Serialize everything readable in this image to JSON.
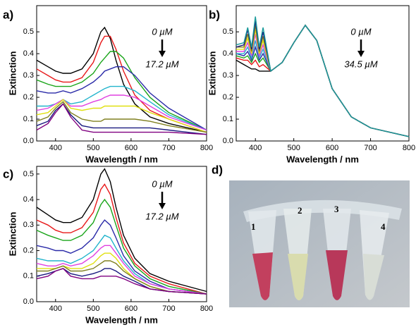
{
  "chart_data": [
    {
      "type": "line",
      "panel_label": "a)",
      "xlabel": "Wavelength / nm",
      "ylabel": "Extinction",
      "annotations": [
        "0 µM",
        "17.2 µM"
      ],
      "xlim": [
        350,
        800
      ],
      "xticks": [
        400,
        500,
        600,
        700,
        800
      ],
      "ylim": [
        0,
        0.62
      ],
      "yticks": [
        {
          "value": 0,
          "label": "0.0"
        },
        0.1,
        0.2,
        0.3,
        0.4,
        0.5
      ],
      "x": [
        350,
        380,
        400,
        420,
        440,
        470,
        500,
        520,
        530,
        545,
        560,
        580,
        610,
        650,
        700,
        800
      ],
      "series": [
        {
          "color": "#000000",
          "values": [
            0.37,
            0.34,
            0.32,
            0.31,
            0.31,
            0.33,
            0.4,
            0.5,
            0.52,
            0.47,
            0.37,
            0.26,
            0.17,
            0.11,
            0.08,
            0.04
          ]
        },
        {
          "color": "#e8191a",
          "values": [
            0.33,
            0.3,
            0.28,
            0.27,
            0.27,
            0.29,
            0.36,
            0.45,
            0.48,
            0.48,
            0.42,
            0.32,
            0.21,
            0.14,
            0.1,
            0.04
          ]
        },
        {
          "color": "#1aa51a",
          "values": [
            0.28,
            0.26,
            0.25,
            0.25,
            0.25,
            0.27,
            0.31,
            0.36,
            0.38,
            0.41,
            0.41,
            0.38,
            0.29,
            0.2,
            0.13,
            0.05
          ]
        },
        {
          "color": "#2a2aa8",
          "values": [
            0.23,
            0.22,
            0.22,
            0.23,
            0.22,
            0.24,
            0.27,
            0.3,
            0.32,
            0.33,
            0.34,
            0.34,
            0.3,
            0.22,
            0.15,
            0.05
          ]
        },
        {
          "color": "#22b4cc",
          "values": [
            0.16,
            0.16,
            0.17,
            0.19,
            0.17,
            0.18,
            0.21,
            0.23,
            0.24,
            0.25,
            0.25,
            0.25,
            0.23,
            0.18,
            0.12,
            0.05
          ]
        },
        {
          "color": "#e040e0",
          "values": [
            0.14,
            0.15,
            0.17,
            0.19,
            0.16,
            0.16,
            0.18,
            0.19,
            0.2,
            0.21,
            0.21,
            0.21,
            0.2,
            0.16,
            0.11,
            0.05
          ]
        },
        {
          "color": "#e0e010",
          "values": [
            0.12,
            0.13,
            0.16,
            0.19,
            0.15,
            0.14,
            0.15,
            0.15,
            0.16,
            0.16,
            0.16,
            0.16,
            0.16,
            0.13,
            0.1,
            0.04
          ]
        },
        {
          "color": "#808020",
          "values": [
            0.09,
            0.11,
            0.15,
            0.18,
            0.13,
            0.1,
            0.09,
            0.09,
            0.1,
            0.1,
            0.1,
            0.1,
            0.1,
            0.09,
            0.07,
            0.04
          ]
        },
        {
          "color": "#1a1a80",
          "values": [
            0.07,
            0.09,
            0.14,
            0.17,
            0.12,
            0.07,
            0.06,
            0.06,
            0.06,
            0.06,
            0.06,
            0.06,
            0.06,
            0.06,
            0.05,
            0.03
          ]
        },
        {
          "color": "#800080",
          "values": [
            0.05,
            0.08,
            0.13,
            0.17,
            0.11,
            0.05,
            0.04,
            0.04,
            0.04,
            0.04,
            0.04,
            0.04,
            0.04,
            0.04,
            0.04,
            0.03
          ]
        }
      ]
    },
    {
      "type": "line",
      "panel_label": "b)",
      "xlabel": "Wavelength / nm",
      "ylabel": "Extinction",
      "annotations": [
        "0 µM",
        "34.5 µM"
      ],
      "xlim": [
        350,
        800
      ],
      "xticks": [
        400,
        500,
        600,
        700,
        800
      ],
      "ylim": [
        0,
        0.62
      ],
      "yticks": [
        {
          "value": 0,
          "label": "0.0"
        },
        0.1,
        0.2,
        0.3,
        0.4,
        0.5
      ],
      "x": [
        350,
        370,
        380,
        390,
        400,
        410,
        420,
        440,
        470,
        500,
        530,
        560,
        600,
        650,
        700,
        800
      ],
      "series": [
        {
          "color": "#000000",
          "values": [
            0.37,
            0.35,
            0.34,
            0.33,
            0.33,
            0.32,
            0.32,
            0.32,
            0.36,
            0.45,
            0.53,
            0.46,
            0.24,
            0.11,
            0.06,
            0.02
          ]
        },
        {
          "color": "#e8191a",
          "values": [
            0.38,
            0.37,
            0.37,
            0.35,
            0.37,
            0.34,
            0.35,
            0.32,
            0.36,
            0.45,
            0.53,
            0.46,
            0.24,
            0.11,
            0.06,
            0.02
          ]
        },
        {
          "color": "#1aa51a",
          "values": [
            0.39,
            0.38,
            0.39,
            0.36,
            0.4,
            0.36,
            0.38,
            0.32,
            0.36,
            0.45,
            0.53,
            0.46,
            0.24,
            0.11,
            0.06,
            0.02
          ]
        },
        {
          "color": "#2a2aa8",
          "values": [
            0.4,
            0.39,
            0.41,
            0.37,
            0.43,
            0.37,
            0.4,
            0.32,
            0.36,
            0.45,
            0.53,
            0.46,
            0.24,
            0.11,
            0.06,
            0.02
          ]
        },
        {
          "color": "#22b4cc",
          "values": [
            0.4,
            0.4,
            0.43,
            0.38,
            0.46,
            0.38,
            0.42,
            0.32,
            0.36,
            0.45,
            0.53,
            0.46,
            0.24,
            0.11,
            0.06,
            0.02
          ]
        },
        {
          "color": "#e040e0",
          "values": [
            0.41,
            0.41,
            0.45,
            0.39,
            0.49,
            0.39,
            0.44,
            0.32,
            0.36,
            0.45,
            0.53,
            0.46,
            0.24,
            0.11,
            0.06,
            0.02
          ]
        },
        {
          "color": "#e0e010",
          "values": [
            0.42,
            0.42,
            0.47,
            0.4,
            0.51,
            0.4,
            0.46,
            0.32,
            0.36,
            0.45,
            0.53,
            0.46,
            0.24,
            0.11,
            0.06,
            0.02
          ]
        },
        {
          "color": "#808020",
          "values": [
            0.43,
            0.43,
            0.49,
            0.41,
            0.53,
            0.41,
            0.48,
            0.32,
            0.36,
            0.45,
            0.53,
            0.46,
            0.24,
            0.11,
            0.06,
            0.02
          ]
        },
        {
          "color": "#1a1a80",
          "values": [
            0.43,
            0.44,
            0.51,
            0.42,
            0.55,
            0.42,
            0.5,
            0.32,
            0.36,
            0.45,
            0.53,
            0.46,
            0.24,
            0.11,
            0.06,
            0.02
          ]
        },
        {
          "color": "#1a9a9a",
          "values": [
            0.44,
            0.45,
            0.52,
            0.43,
            0.57,
            0.43,
            0.52,
            0.32,
            0.36,
            0.45,
            0.53,
            0.46,
            0.24,
            0.11,
            0.06,
            0.02
          ]
        }
      ]
    },
    {
      "type": "line",
      "panel_label": "c)",
      "xlabel": "Wavelength / nm",
      "ylabel": "Extinction",
      "annotations": [
        "0 µM",
        "17.2 µM"
      ],
      "xlim": [
        350,
        800
      ],
      "xticks": [
        400,
        500,
        600,
        700,
        800
      ],
      "ylim": [
        0,
        0.53
      ],
      "yticks": [
        {
          "value": 0,
          "label": "0.0"
        },
        0.1,
        0.2,
        0.3,
        0.4,
        0.5
      ],
      "x": [
        350,
        380,
        400,
        420,
        440,
        470,
        500,
        520,
        530,
        545,
        560,
        580,
        610,
        650,
        700,
        800
      ],
      "series": [
        {
          "color": "#000000",
          "values": [
            0.37,
            0.34,
            0.32,
            0.31,
            0.31,
            0.33,
            0.4,
            0.5,
            0.52,
            0.47,
            0.37,
            0.26,
            0.17,
            0.11,
            0.08,
            0.04
          ]
        },
        {
          "color": "#e8191a",
          "values": [
            0.32,
            0.3,
            0.28,
            0.27,
            0.27,
            0.29,
            0.35,
            0.44,
            0.46,
            0.42,
            0.33,
            0.23,
            0.15,
            0.1,
            0.07,
            0.03
          ]
        },
        {
          "color": "#1aa51a",
          "values": [
            0.28,
            0.26,
            0.25,
            0.24,
            0.24,
            0.26,
            0.31,
            0.38,
            0.4,
            0.37,
            0.3,
            0.21,
            0.14,
            0.09,
            0.06,
            0.03
          ]
        },
        {
          "color": "#2a2aa8",
          "values": [
            0.22,
            0.21,
            0.2,
            0.2,
            0.19,
            0.21,
            0.25,
            0.3,
            0.32,
            0.3,
            0.25,
            0.18,
            0.12,
            0.08,
            0.05,
            0.03
          ]
        },
        {
          "color": "#22b4cc",
          "values": [
            0.17,
            0.16,
            0.16,
            0.16,
            0.15,
            0.17,
            0.2,
            0.24,
            0.26,
            0.25,
            0.21,
            0.16,
            0.11,
            0.07,
            0.05,
            0.03
          ]
        },
        {
          "color": "#e040e0",
          "values": [
            0.15,
            0.14,
            0.14,
            0.15,
            0.14,
            0.15,
            0.18,
            0.21,
            0.22,
            0.22,
            0.19,
            0.15,
            0.1,
            0.07,
            0.05,
            0.03
          ]
        },
        {
          "color": "#e0e010",
          "values": [
            0.13,
            0.13,
            0.13,
            0.14,
            0.13,
            0.13,
            0.15,
            0.18,
            0.19,
            0.19,
            0.17,
            0.13,
            0.09,
            0.06,
            0.04,
            0.03
          ]
        },
        {
          "color": "#808020",
          "values": [
            0.12,
            0.12,
            0.13,
            0.14,
            0.12,
            0.12,
            0.13,
            0.15,
            0.16,
            0.16,
            0.15,
            0.12,
            0.09,
            0.06,
            0.04,
            0.03
          ]
        },
        {
          "color": "#1a1a80",
          "values": [
            0.1,
            0.11,
            0.12,
            0.13,
            0.11,
            0.1,
            0.11,
            0.12,
            0.13,
            0.13,
            0.12,
            0.1,
            0.08,
            0.05,
            0.04,
            0.03
          ]
        },
        {
          "color": "#800080",
          "values": [
            0.09,
            0.1,
            0.12,
            0.13,
            0.1,
            0.09,
            0.09,
            0.1,
            0.1,
            0.1,
            0.1,
            0.09,
            0.07,
            0.05,
            0.04,
            0.03
          ]
        }
      ]
    }
  ],
  "photo": {
    "panel_label": "d)",
    "tube_labels": [
      "1",
      "2",
      "3",
      "4"
    ]
  }
}
